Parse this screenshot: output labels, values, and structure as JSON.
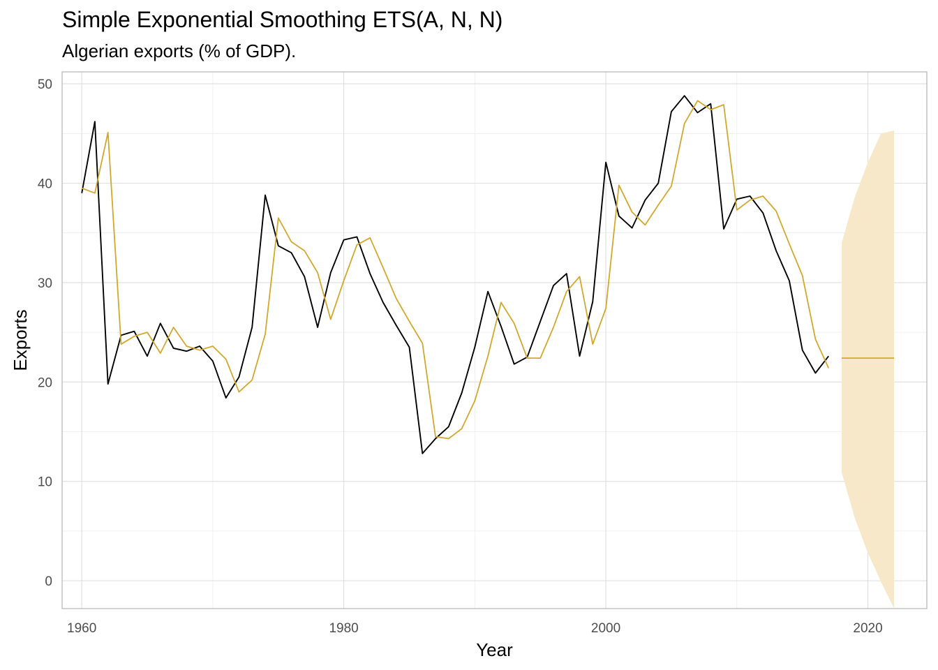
{
  "chart_data": {
    "type": "line",
    "title": "Simple Exponential Smoothing ETS(A, N, N)",
    "subtitle": "Algerian exports (% of GDP).",
    "xlabel": "Year",
    "ylabel": "Exports",
    "xlim": [
      1958.5,
      2024.5
    ],
    "ylim": [
      -2.8,
      51.2
    ],
    "x_ticks": [
      1960,
      1980,
      2000,
      2020
    ],
    "y_ticks": [
      0,
      10,
      20,
      30,
      40,
      50
    ],
    "grid": true,
    "legend": "none",
    "x": [
      1960,
      1961,
      1962,
      1963,
      1964,
      1965,
      1966,
      1967,
      1968,
      1969,
      1970,
      1971,
      1972,
      1973,
      1974,
      1975,
      1976,
      1977,
      1978,
      1979,
      1980,
      1981,
      1982,
      1983,
      1984,
      1985,
      1986,
      1987,
      1988,
      1989,
      1990,
      1991,
      1992,
      1993,
      1994,
      1995,
      1996,
      1997,
      1998,
      1999,
      2000,
      2001,
      2002,
      2003,
      2004,
      2005,
      2006,
      2007,
      2008,
      2009,
      2010,
      2011,
      2012,
      2013,
      2014,
      2015,
      2016,
      2017
    ],
    "series": [
      {
        "color": "#000000",
        "values": [
          39.0,
          46.2,
          19.8,
          24.7,
          25.1,
          22.6,
          25.9,
          23.4,
          23.1,
          23.6,
          22.1,
          18.4,
          20.5,
          25.5,
          38.8,
          33.7,
          33.0,
          30.6,
          25.5,
          31.0,
          34.3,
          34.6,
          30.9,
          28.0,
          25.7,
          23.5,
          12.8,
          14.3,
          15.5,
          18.9,
          23.5,
          29.1,
          25.6,
          21.8,
          22.5,
          26.1,
          29.7,
          30.9,
          22.6,
          28.1,
          42.1,
          36.7,
          35.5,
          38.3,
          40.0,
          47.2,
          48.8,
          47.1,
          48.0,
          35.4,
          38.4,
          38.7,
          37.0,
          33.2,
          30.2,
          23.2,
          20.9,
          22.6
        ]
      },
      {
        "color": "#D4A72C",
        "values": [
          39.5,
          39.0,
          45.1,
          23.8,
          24.6,
          25.0,
          22.9,
          25.5,
          23.6,
          23.2,
          23.6,
          22.3,
          19.0,
          20.2,
          24.8,
          36.5,
          34.1,
          33.2,
          31.0,
          26.3,
          30.2,
          33.8,
          34.5,
          31.5,
          28.4,
          26.1,
          23.9,
          14.5,
          14.3,
          15.3,
          18.1,
          22.6,
          28.0,
          25.9,
          22.4,
          22.4,
          25.5,
          29.1,
          30.6,
          23.8,
          27.4,
          39.8,
          37.1,
          35.8,
          37.8,
          39.7,
          46.0,
          48.3,
          47.4,
          47.9,
          37.3,
          38.3,
          38.7,
          37.2,
          33.9,
          30.7,
          24.3,
          21.4
        ]
      }
    ],
    "forecast": {
      "color": "#D4A72C",
      "interval_color": "#F6E8C9",
      "x": [
        2018,
        2019,
        2020,
        2021,
        2022
      ],
      "mean": [
        22.4,
        22.4,
        22.4,
        22.4,
        22.4
      ],
      "lower": [
        10.9,
        6.3,
        2.8,
        -0.1,
        -2.8
      ],
      "upper": [
        34.0,
        38.6,
        42.1,
        45.0,
        45.3
      ]
    }
  }
}
